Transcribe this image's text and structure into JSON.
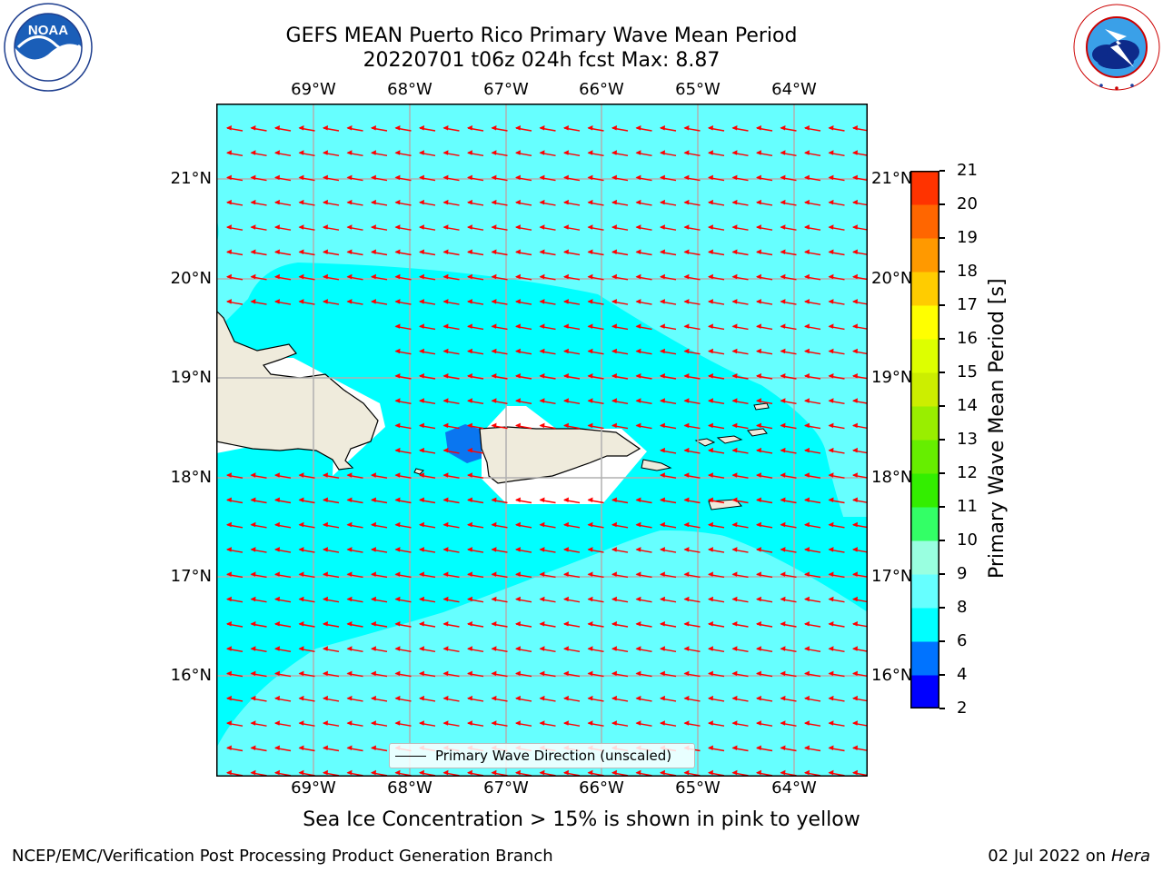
{
  "header": {
    "title_line1": "GEFS MEAN Puerto Rico Primary Wave Mean Period",
    "title_line2": "20220701 t06z 024h fcst   Max: 8.87"
  },
  "logos": {
    "left": {
      "icon": "noaa-logo-icon",
      "text": "NOAA",
      "ring_text": "NATIONAL OCEANIC AND ATMOSPHERIC ADMINISTRATION · U.S. DEPARTMENT OF COMMERCE"
    },
    "right": {
      "icon": "nws-logo-icon",
      "ring_text": "NATIONAL WEATHER SERVICE"
    }
  },
  "map": {
    "lon_labels": [
      "69°W",
      "68°W",
      "67°W",
      "66°W",
      "65°W",
      "64°W"
    ],
    "lat_labels_left": [
      "21°N",
      "20°N",
      "19°N",
      "18°N",
      "17°N",
      "16°N"
    ],
    "lat_labels_right": [
      "21°N",
      "20°N",
      "19°N",
      "18°N",
      "17°N",
      "16°N"
    ],
    "legend_label": "Primary Wave Direction (unscaled)",
    "arrow_color": "#ff0000",
    "land_color": "#efebdc",
    "field_colors": {
      "6-8": "#00ffff",
      "8-9": "#66ffff",
      "4-6": "#0a76f0"
    }
  },
  "colorbar": {
    "title": "Primary Wave Mean Period [s]",
    "tick_labels": [
      "2",
      "4",
      "6",
      "8",
      "9",
      "10",
      "11",
      "12",
      "13",
      "14",
      "15",
      "16",
      "17",
      "18",
      "19",
      "20",
      "21"
    ],
    "colors": [
      "#0000ff",
      "#0073ff",
      "#00ffff",
      "#66ffff",
      "#99ffe0",
      "#33ff66",
      "#33ee00",
      "#66ee00",
      "#99ee00",
      "#ccee00",
      "#ddff00",
      "#ffff00",
      "#ffcc00",
      "#ff9900",
      "#ff6600",
      "#ff3300",
      "#ff0000"
    ]
  },
  "note": "Sea Ice Concentration > 15% is shown in pink to yellow",
  "footer": {
    "left": "NCEP/EMC/Verification Post Processing Product Generation Branch",
    "right_prefix": "02 Jul 2022 on ",
    "right_host": "Hera"
  }
}
